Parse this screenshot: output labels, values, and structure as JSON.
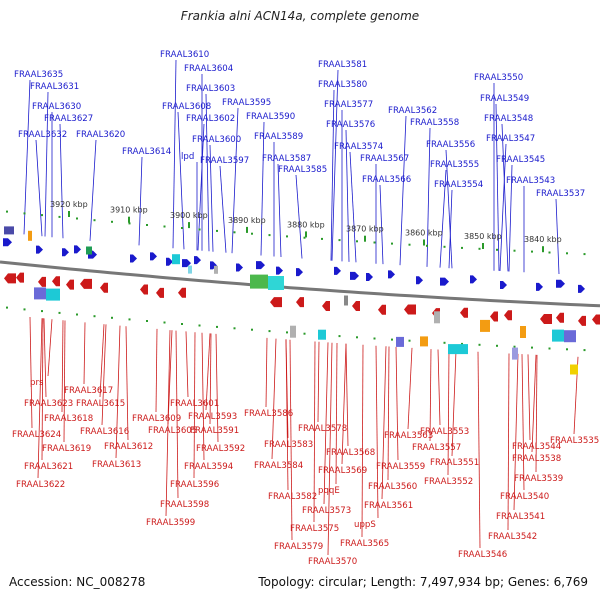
{
  "title": "Frankia alni ACN14a, complete genome",
  "footer": {
    "accession": "Accession: NC_008278",
    "summary": "Topology: circular; Length: 7,497,934 bp; Genes: 6,769"
  },
  "colors": {
    "forward": "#1a1acc",
    "reverse": "#cc1a1a",
    "backbone": "#777777",
    "tick": "#2a9a2a"
  },
  "scale": {
    "unit": "kbp",
    "ticks": [
      "3920 kbp",
      "3910 kbp",
      "3900 kbp",
      "3890 kbp",
      "3880 kbp",
      "3870 kbp",
      "3860 kbp",
      "3850 kbp",
      "3840 kbp"
    ]
  },
  "forward_genes": [
    "FRAAL3635",
    "FRAAL3631",
    "FRAAL3630",
    "FRAAL3627",
    "FRAAL3632",
    "FRAAL3620",
    "FRAAL3610",
    "FRAAL3604",
    "FRAAL3603",
    "FRAAL3608",
    "FRAAL3602",
    "FRAAL3614",
    "lpd",
    "FRAAL3600",
    "FRAAL3597",
    "FRAAL3595",
    "FRAAL3590",
    "FRAAL3589",
    "FRAAL3587",
    "FRAAL3585",
    "FRAAL3581",
    "FRAAL3580",
    "FRAAL3577",
    "FRAAL3576",
    "FRAAL3574",
    "FRAAL3562",
    "FRAAL3558",
    "FRAAL3567",
    "FRAAL3566",
    "FRAAL3556",
    "FRAAL3555",
    "FRAAL3554",
    "FRAAL3550",
    "FRAAL3549",
    "FRAAL3548",
    "FRAAL3547",
    "FRAAL3545",
    "FRAAL3543",
    "FRAAL3537"
  ],
  "reverse_genes": [
    "prs",
    "FRAAL3617",
    "FRAAL3623",
    "FRAAL3615",
    "FRAAL3618",
    "FRAAL3624",
    "FRAAL3616",
    "FRAAL3609",
    "FRAAL3601",
    "FRAAL3605",
    "FRAAL3619",
    "FRAAL3612",
    "FRAAL3593",
    "FRAAL3591",
    "FRAAL3592",
    "FRAAL3613",
    "FRAAL3621",
    "FRAAL3594",
    "FRAAL3622",
    "FRAAL3596",
    "FRAAL3598",
    "FRAAL3599",
    "FRAAL3586",
    "FRAAL3583",
    "FRAAL3584",
    "FRAAL3578",
    "FRAAL3568",
    "FRAAL3569",
    "pqqE",
    "FRAAL3582",
    "FRAAL3573",
    "FRAAL3575",
    "FRAAL3579",
    "FRAAL3570",
    "FRAAL3565",
    "uppS",
    "FRAAL3561",
    "FRAAL3560",
    "FRAAL3559",
    "FRAAL3563",
    "FRAAL3557",
    "FRAAL3553",
    "FRAAL3551",
    "FRAAL3552",
    "FRAAL3544",
    "FRAAL3538",
    "FRAAL3539",
    "FRAAL3540",
    "FRAAL3541",
    "FRAAL3542",
    "FRAAL3546",
    "FRAAL3535"
  ]
}
